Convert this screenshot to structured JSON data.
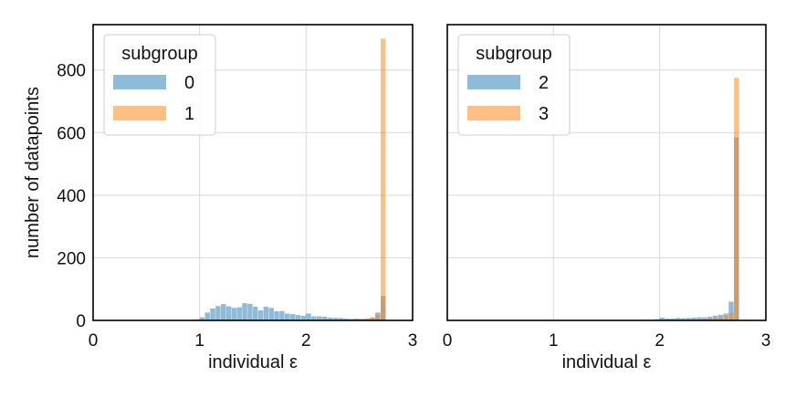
{
  "chart_data": [
    {
      "type": "histogram",
      "panel": "left",
      "xlabel": "individual ε",
      "ylabel": "number of datapoints",
      "xlim": [
        0,
        3
      ],
      "ylim": [
        0,
        945
      ],
      "xticks": [
        0,
        1,
        2,
        3
      ],
      "yticks": [
        0,
        200,
        400,
        600,
        800
      ],
      "grid": true,
      "legend": {
        "title": "subgroup",
        "placement": "top-left"
      },
      "bin_width": 0.05,
      "series": [
        {
          "name": "0",
          "color": "#1f77b4",
          "bins": [
            [
              0.95,
              3
            ],
            [
              1.0,
              10
            ],
            [
              1.05,
              25
            ],
            [
              1.1,
              38
            ],
            [
              1.15,
              46
            ],
            [
              1.2,
              52
            ],
            [
              1.25,
              45
            ],
            [
              1.3,
              40
            ],
            [
              1.35,
              42
            ],
            [
              1.4,
              55
            ],
            [
              1.45,
              53
            ],
            [
              1.5,
              44
            ],
            [
              1.55,
              32
            ],
            [
              1.6,
              44
            ],
            [
              1.65,
              40
            ],
            [
              1.7,
              29
            ],
            [
              1.75,
              30
            ],
            [
              1.8,
              22
            ],
            [
              1.85,
              20
            ],
            [
              1.9,
              17
            ],
            [
              1.95,
              15
            ],
            [
              2.0,
              22
            ],
            [
              2.05,
              13
            ],
            [
              2.1,
              13
            ],
            [
              2.15,
              12
            ],
            [
              2.2,
              9
            ],
            [
              2.25,
              8
            ],
            [
              2.3,
              8
            ],
            [
              2.35,
              6
            ],
            [
              2.4,
              5
            ],
            [
              2.45,
              6
            ],
            [
              2.5,
              5
            ],
            [
              2.55,
              5
            ],
            [
              2.6,
              8
            ],
            [
              2.65,
              25
            ],
            [
              2.7,
              78
            ]
          ]
        },
        {
          "name": "1",
          "color": "#ff7f0e",
          "bins": [
            [
              2.45,
              3
            ],
            [
              2.5,
              4
            ],
            [
              2.55,
              6
            ],
            [
              2.6,
              10
            ],
            [
              2.65,
              18
            ],
            [
              2.7,
              900
            ]
          ]
        }
      ]
    },
    {
      "type": "histogram",
      "panel": "right",
      "xlabel": "individual ε",
      "ylabel": "",
      "xlim": [
        0,
        3
      ],
      "ylim": [
        0,
        945
      ],
      "xticks": [
        0,
        1,
        2,
        3
      ],
      "yticks": [],
      "grid": true,
      "legend": {
        "title": "subgroup",
        "placement": "top-left"
      },
      "bin_width": 0.05,
      "series": [
        {
          "name": "2",
          "color": "#1f77b4",
          "bins": [
            [
              1.55,
              1
            ],
            [
              1.75,
              1
            ],
            [
              1.85,
              2
            ],
            [
              1.95,
              4
            ],
            [
              2.0,
              9
            ],
            [
              2.05,
              6
            ],
            [
              2.1,
              6
            ],
            [
              2.15,
              8
            ],
            [
              2.2,
              7
            ],
            [
              2.25,
              8
            ],
            [
              2.3,
              9
            ],
            [
              2.35,
              10
            ],
            [
              2.4,
              10
            ],
            [
              2.45,
              12
            ],
            [
              2.5,
              15
            ],
            [
              2.55,
              18
            ],
            [
              2.6,
              22
            ],
            [
              2.65,
              60
            ],
            [
              2.7,
              585
            ]
          ]
        },
        {
          "name": "3",
          "color": "#ff7f0e",
          "bins": [
            [
              2.3,
              3
            ],
            [
              2.35,
              4
            ],
            [
              2.4,
              5
            ],
            [
              2.45,
              6
            ],
            [
              2.5,
              8
            ],
            [
              2.55,
              10
            ],
            [
              2.6,
              14
            ],
            [
              2.65,
              25
            ],
            [
              2.7,
              775
            ]
          ]
        }
      ]
    }
  ]
}
